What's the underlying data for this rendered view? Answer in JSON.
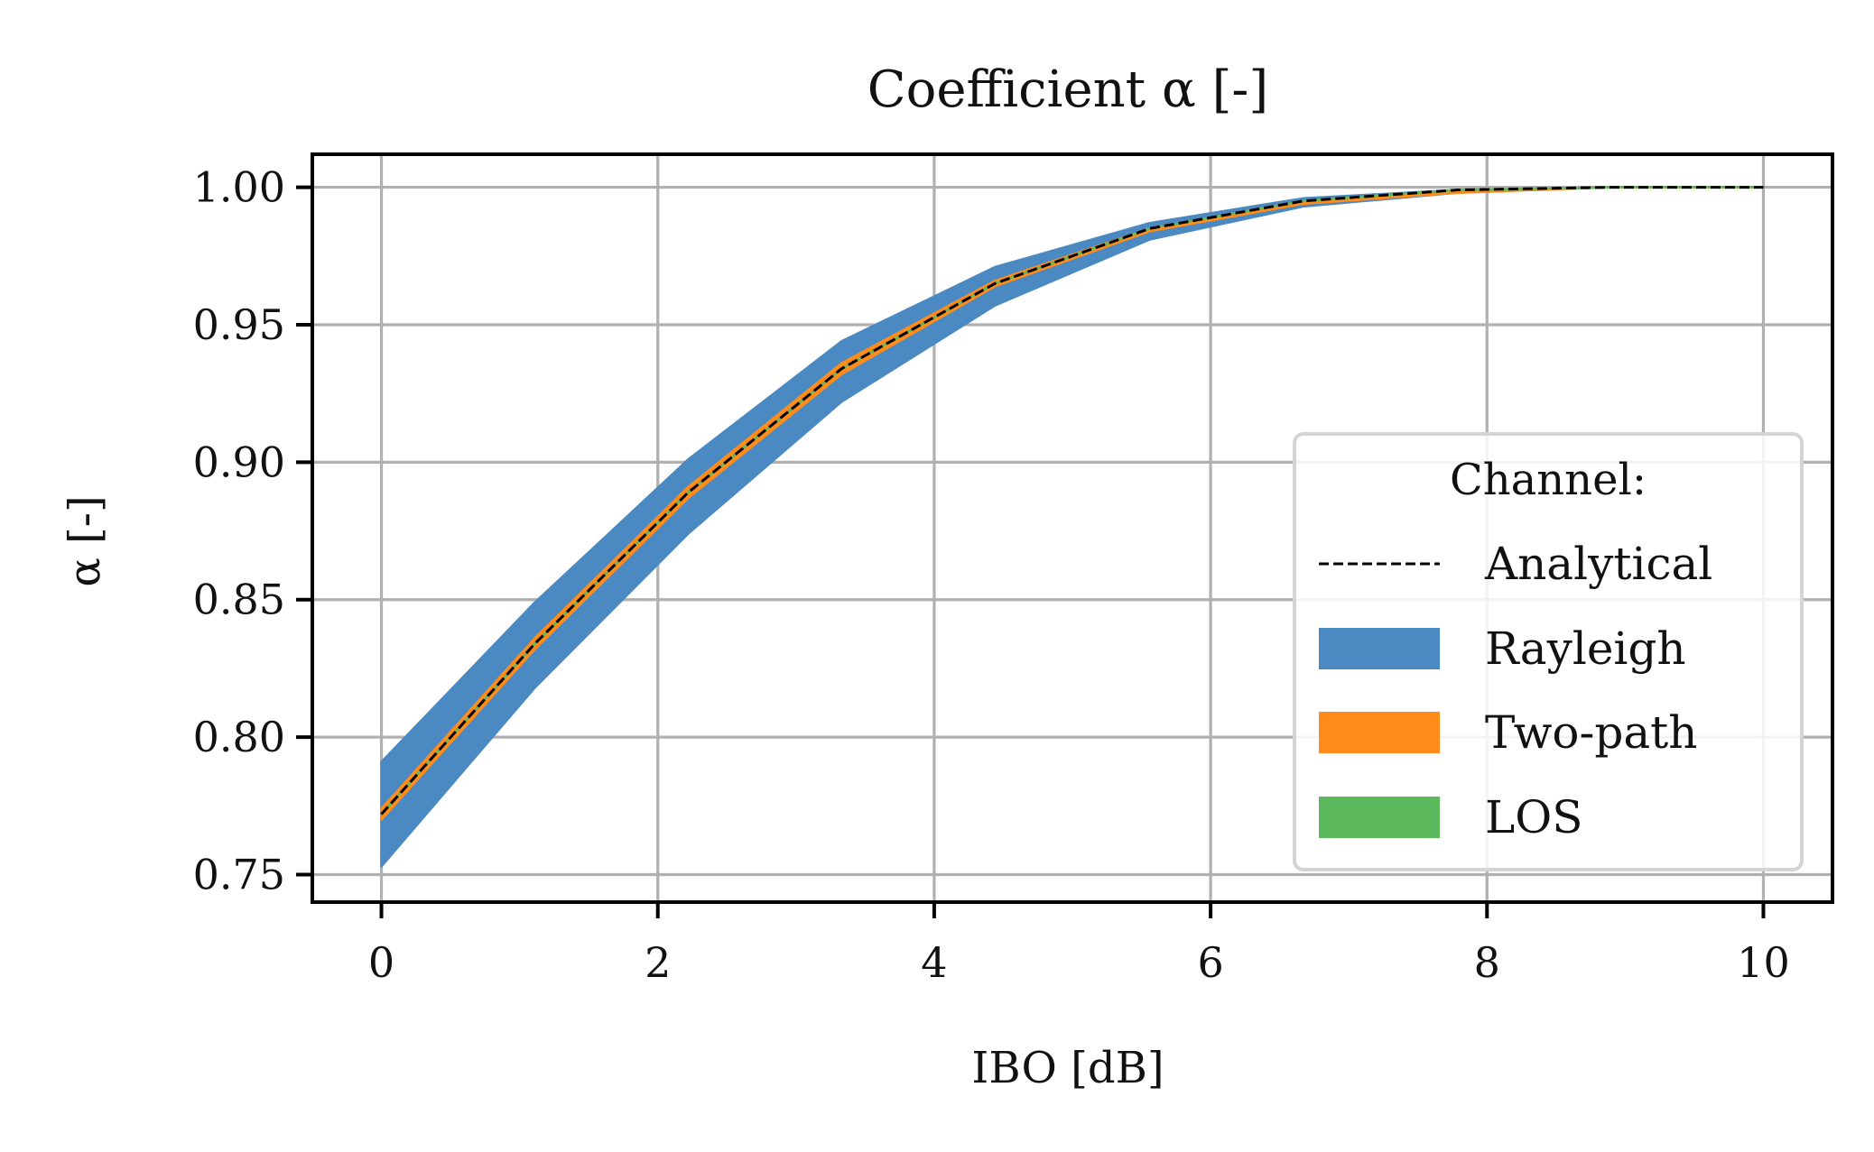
{
  "chart_data": {
    "type": "area",
    "title": "Coefficient α [-]",
    "xlabel": "IBO [dB]",
    "ylabel": "α [-]",
    "xlim": [
      -0.5,
      10.5
    ],
    "ylim": [
      0.74,
      1.012
    ],
    "xticks": [
      0,
      2,
      4,
      6,
      8,
      10
    ],
    "xtick_labels": [
      "0",
      "2",
      "4",
      "6",
      "8",
      "10"
    ],
    "yticks": [
      0.75,
      0.8,
      0.85,
      0.9,
      0.95,
      1.0
    ],
    "ytick_labels": [
      "0.75",
      "0.80",
      "0.85",
      "0.90",
      "0.95",
      "1.00"
    ],
    "grid": true,
    "legend": {
      "title": "Channel:",
      "placement": "lower-right",
      "entries": [
        {
          "label": "Analytical",
          "kind": "dashed-line",
          "color": "#000000"
        },
        {
          "label": "Rayleigh",
          "kind": "band",
          "color": "#4a89c2"
        },
        {
          "label": "Two-path",
          "kind": "band",
          "color": "#ff8c1a"
        },
        {
          "label": "LOS",
          "kind": "band",
          "color": "#5cb85c"
        }
      ]
    },
    "x": [
      0,
      1.11,
      2.22,
      3.33,
      4.44,
      5.56,
      6.67,
      7.78,
      8.89,
      10
    ],
    "series": [
      {
        "name": "Rayleigh",
        "kind": "band",
        "color": "#4a89c2",
        "lower": [
          0.753,
          0.818,
          0.874,
          0.922,
          0.957,
          0.981,
          0.993,
          0.998,
          1.0,
          1.0
        ],
        "upper": [
          0.791,
          0.849,
          0.901,
          0.944,
          0.971,
          0.987,
          0.996,
          0.999,
          1.0,
          1.0
        ]
      },
      {
        "name": "Two-path",
        "kind": "band",
        "color": "#ff8c1a",
        "lower": [
          0.77,
          0.832,
          0.887,
          0.932,
          0.964,
          0.984,
          0.994,
          0.998,
          1.0,
          1.0
        ],
        "upper": [
          0.774,
          0.836,
          0.891,
          0.936,
          0.966,
          0.985,
          0.995,
          0.999,
          1.0,
          1.0
        ]
      },
      {
        "name": "LOS",
        "kind": "band",
        "color": "#5cb85c",
        "lower": [
          0.772,
          0.834,
          0.889,
          0.934,
          0.965,
          0.985,
          0.995,
          0.999,
          1.0,
          1.0
        ],
        "upper": [
          0.772,
          0.834,
          0.889,
          0.934,
          0.965,
          0.985,
          0.995,
          0.999,
          1.0,
          1.0
        ]
      },
      {
        "name": "Analytical",
        "kind": "dashed-line",
        "color": "#000000",
        "values": [
          0.772,
          0.834,
          0.889,
          0.934,
          0.965,
          0.985,
          0.995,
          0.999,
          1.0,
          1.0
        ]
      }
    ]
  }
}
